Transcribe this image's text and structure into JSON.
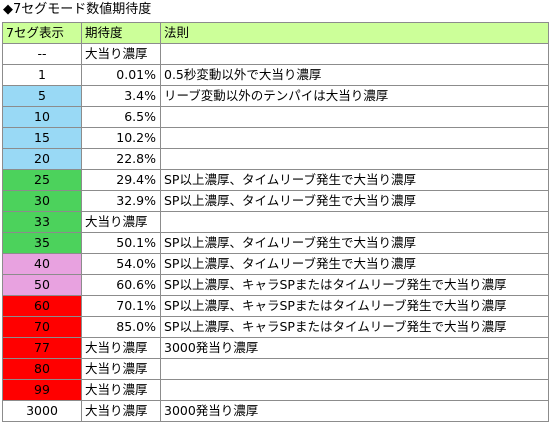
{
  "title": "◆7セグモード数値期待度",
  "headers": [
    "7セグ表示",
    "期待度",
    "法則"
  ],
  "rows": [
    {
      "seg": "--",
      "rate": "大当り濃厚",
      "law": "",
      "color": "#ffffff"
    },
    {
      "seg": "1",
      "rate": "0.01%",
      "law": "0.5秒変動以外で大当り濃厚",
      "color": "#ffffff"
    },
    {
      "seg": "5",
      "rate": "3.4%",
      "law": "リーブ変動以外のテンパイは大当り濃厚",
      "color": "#99d9f5"
    },
    {
      "seg": "10",
      "rate": "6.5%",
      "law": "",
      "color": "#99d9f5"
    },
    {
      "seg": "15",
      "rate": "10.2%",
      "law": "",
      "color": "#99d9f5"
    },
    {
      "seg": "20",
      "rate": "22.8%",
      "law": "",
      "color": "#99d9f5"
    },
    {
      "seg": "25",
      "rate": "29.4%",
      "law": "SP以上濃厚、タイムリーブ発生で大当り濃厚",
      "color": "#4cd25c"
    },
    {
      "seg": "30",
      "rate": "32.9%",
      "law": "SP以上濃厚、タイムリーブ発生で大当り濃厚",
      "color": "#4cd25c"
    },
    {
      "seg": "33",
      "rate": "大当り濃厚",
      "law": "",
      "color": "#4cd25c"
    },
    {
      "seg": "35",
      "rate": "50.1%",
      "law": "SP以上濃厚、タイムリーブ発生で大当り濃厚",
      "color": "#4cd25c"
    },
    {
      "seg": "40",
      "rate": "54.0%",
      "law": "SP以上濃厚、タイムリーブ発生で大当り濃厚",
      "color": "#e8a2e0"
    },
    {
      "seg": "50",
      "rate": "60.6%",
      "law": "SP以上濃厚、キャラSPまたはタイムリーブ発生で大当り濃厚",
      "color": "#e8a2e0"
    },
    {
      "seg": "60",
      "rate": "70.1%",
      "law": "SP以上濃厚、キャラSPまたはタイムリーブ発生で大当り濃厚",
      "color": "#ff0000"
    },
    {
      "seg": "70",
      "rate": "85.0%",
      "law": "SP以上濃厚、キャラSPまたはタイムリーブ発生で大当り濃厚",
      "color": "#ff0000"
    },
    {
      "seg": "77",
      "rate": "大当り濃厚",
      "law": "3000発当り濃厚",
      "color": "#ff0000"
    },
    {
      "seg": "80",
      "rate": "大当り濃厚",
      "law": "",
      "color": "#ff0000"
    },
    {
      "seg": "99",
      "rate": "大当り濃厚",
      "law": "",
      "color": "#ff0000"
    },
    {
      "seg": "3000",
      "rate": "大当り濃厚",
      "law": "3000発当り濃厚",
      "color": "#ffffff"
    }
  ]
}
